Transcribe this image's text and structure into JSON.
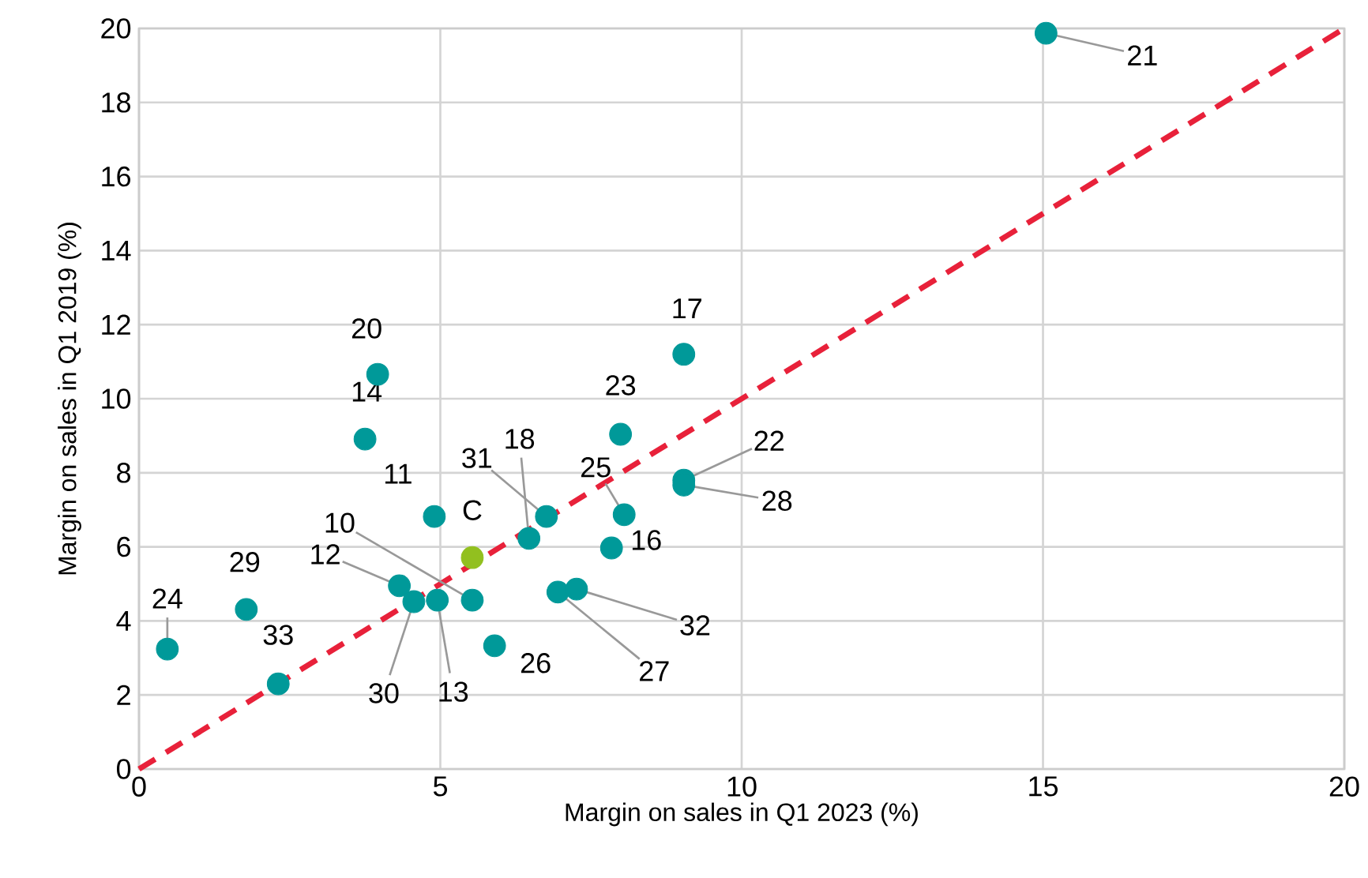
{
  "chart_data": {
    "type": "scatter",
    "xlabel": "Margin on sales in Q1 2023 (%)",
    "ylabel": "Margin on sales in Q1 2019 (%)",
    "xlim": [
      0,
      20
    ],
    "ylim": [
      0,
      20
    ],
    "xticks": [
      0,
      5,
      10,
      15,
      20
    ],
    "yticks": [
      0,
      2,
      4,
      6,
      8,
      10,
      12,
      14,
      16,
      18,
      20
    ],
    "grid": true,
    "marker": "circle",
    "series": [
      {
        "x": [
          3.96,
          3.75,
          4.9,
          5.53,
          5.53,
          4.32,
          4.56,
          4.95,
          1.78,
          0.47,
          2.31,
          5.9,
          6.47,
          6.76,
          8.05,
          7.84,
          7.99,
          9.04,
          9.04,
          9.04,
          6.95,
          7.26,
          15.05
        ],
        "values": [
          10.66,
          8.91,
          6.82,
          5.71,
          4.56,
          4.95,
          4.52,
          4.56,
          4.31,
          3.24,
          2.3,
          3.33,
          6.23,
          6.82,
          6.87,
          5.97,
          9.04,
          11.2,
          7.8,
          7.67,
          4.78,
          4.86,
          19.87
        ],
        "colors": [
          "#009999",
          "#009999",
          "#009999",
          "#92c01f",
          "#009999",
          "#009999",
          "#009999",
          "#009999",
          "#009999",
          "#009999",
          "#009999",
          "#009999",
          "#009999",
          "#009999",
          "#009999",
          "#009999",
          "#009999",
          "#009999",
          "#009999",
          "#009999",
          "#009999",
          "#009999",
          "#009999"
        ]
      },
      {
        "type": "line",
        "x": [
          0,
          20
        ],
        "values": [
          0,
          20
        ],
        "color": "#e8213a",
        "line_style": "dashed",
        "marker": "none"
      }
    ],
    "annotations": [
      {
        "text": "20",
        "x": 3.96,
        "y": 10.66
      },
      {
        "text": "14",
        "x": 3.75,
        "y": 8.91
      },
      {
        "text": "11",
        "x": 4.9,
        "y": 6.82
      },
      {
        "text": "C",
        "x": 5.53,
        "y": 5.71
      },
      {
        "text": "10",
        "x": 5.53,
        "y": 4.56
      },
      {
        "text": "12",
        "x": 4.32,
        "y": 4.95
      },
      {
        "text": "30",
        "x": 4.56,
        "y": 4.52
      },
      {
        "text": "13",
        "x": 4.95,
        "y": 4.56
      },
      {
        "text": "29",
        "x": 1.78,
        "y": 4.31
      },
      {
        "text": "24",
        "x": 0.47,
        "y": 3.24
      },
      {
        "text": "33",
        "x": 2.31,
        "y": 2.3
      },
      {
        "text": "26",
        "x": 5.9,
        "y": 3.33
      },
      {
        "text": "18",
        "x": 6.47,
        "y": 6.23
      },
      {
        "text": "31",
        "x": 6.76,
        "y": 6.82
      },
      {
        "text": "25",
        "x": 8.05,
        "y": 6.87
      },
      {
        "text": "16",
        "x": 7.84,
        "y": 5.97
      },
      {
        "text": "23",
        "x": 7.99,
        "y": 9.04
      },
      {
        "text": "17",
        "x": 9.04,
        "y": 11.2
      },
      {
        "text": "22",
        "x": 9.04,
        "y": 7.8
      },
      {
        "text": "28",
        "x": 9.04,
        "y": 7.67
      },
      {
        "text": "27",
        "x": 6.95,
        "y": 4.78
      },
      {
        "text": "32",
        "x": 7.26,
        "y": 4.86
      },
      {
        "text": "21",
        "x": 15.05,
        "y": 19.87
      }
    ]
  }
}
